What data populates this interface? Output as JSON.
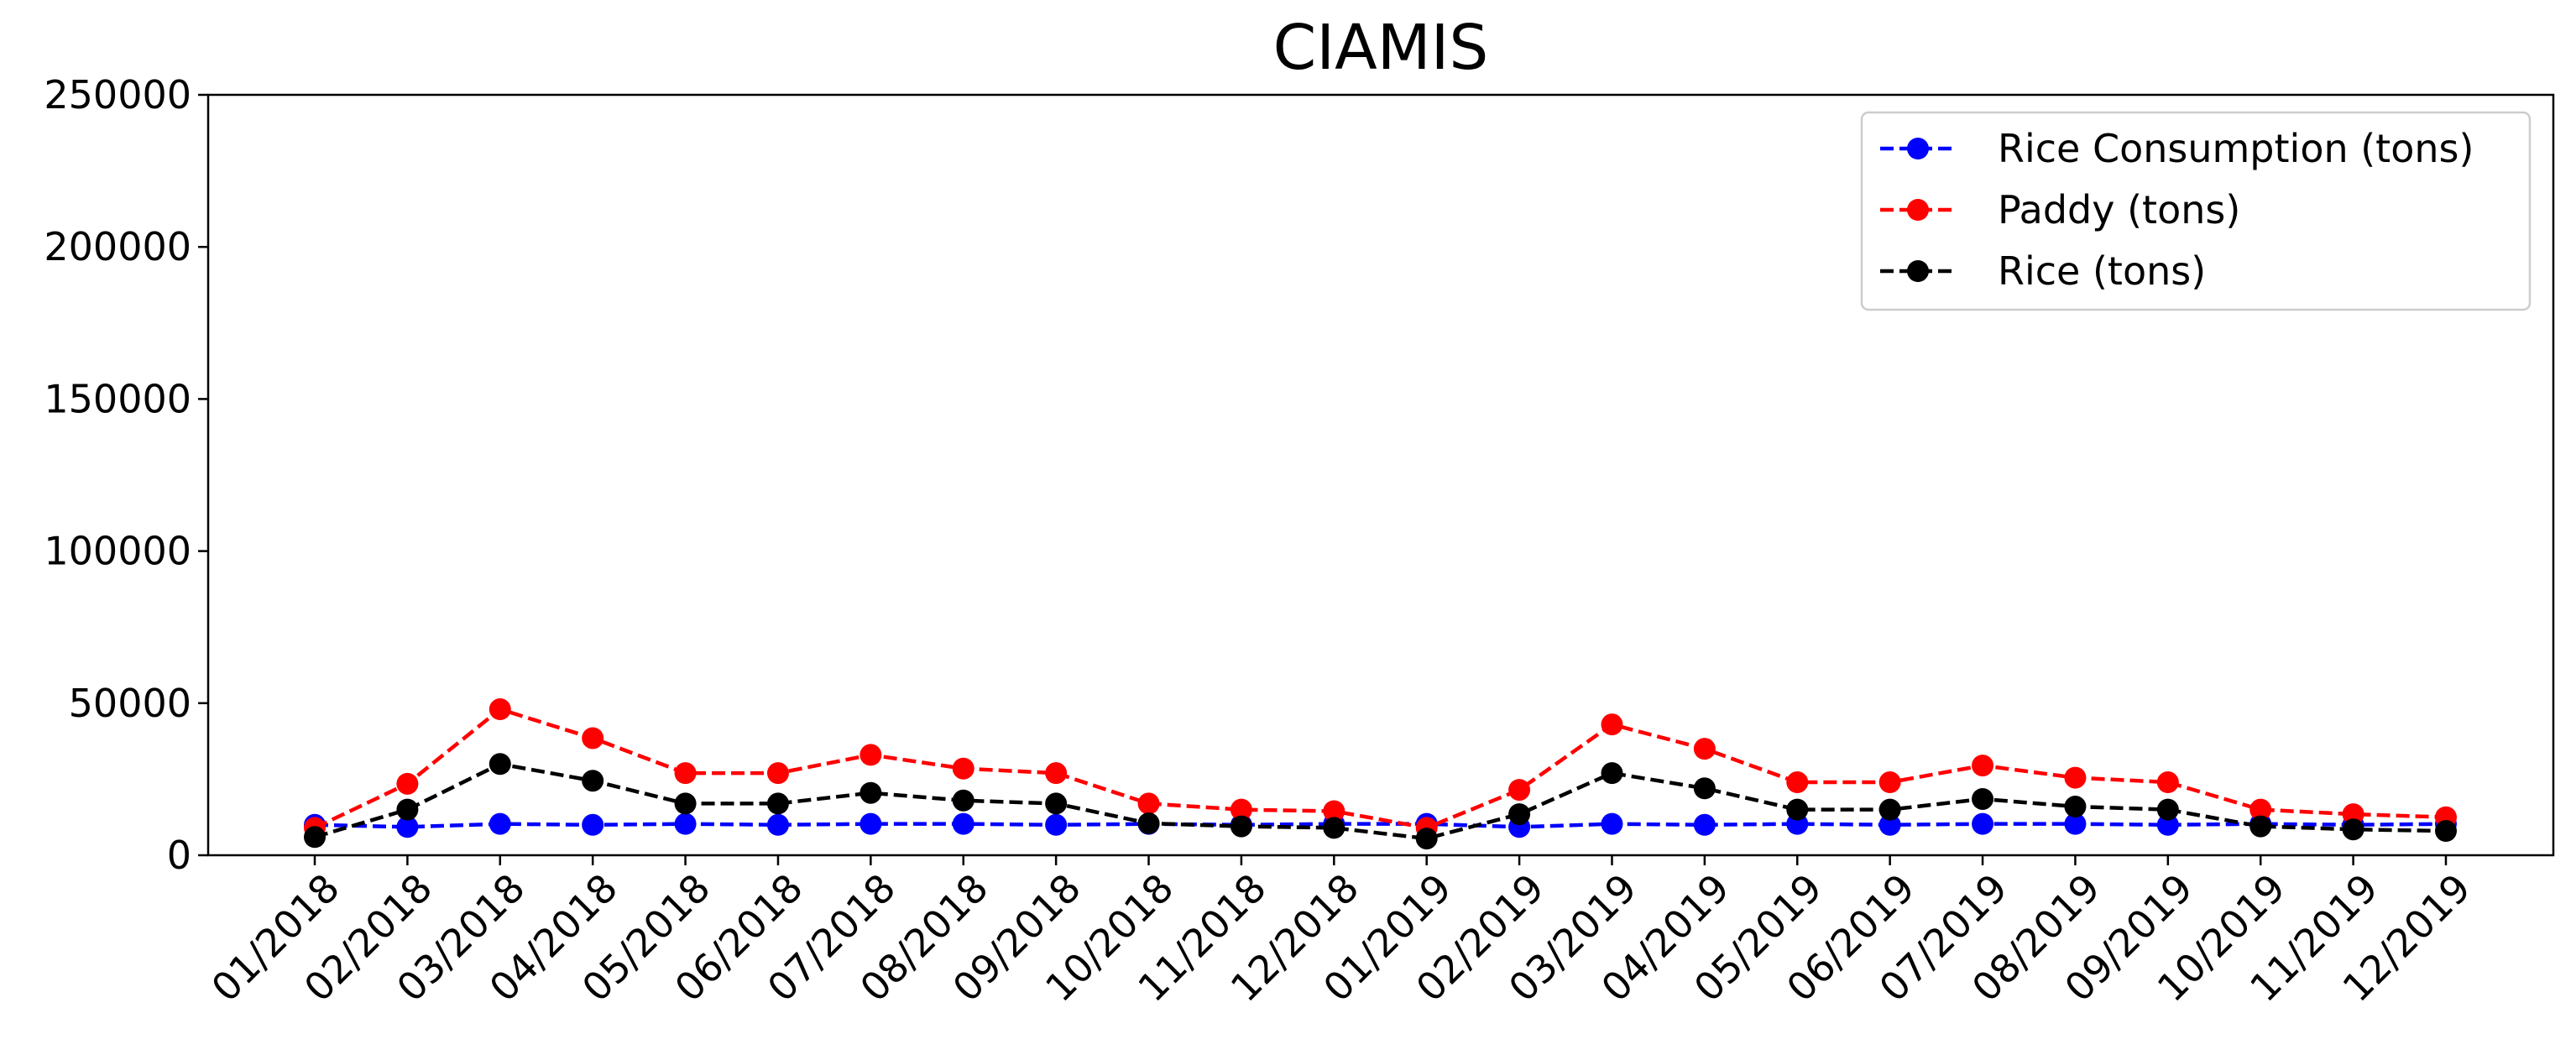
{
  "chart_data": {
    "type": "line",
    "title": "CIAMIS",
    "xlabel": "",
    "ylabel": "",
    "ylim": [
      0,
      250000
    ],
    "yticks": [
      "0",
      "50000",
      "100000",
      "150000",
      "200000",
      "250000"
    ],
    "categories": [
      "01/2018",
      "02/2018",
      "03/2018",
      "04/2018",
      "05/2018",
      "06/2018",
      "07/2018",
      "08/2018",
      "09/2018",
      "10/2018",
      "11/2018",
      "12/2018",
      "01/2019",
      "02/2019",
      "03/2019",
      "04/2019",
      "05/2019",
      "06/2019",
      "07/2019",
      "08/2019",
      "09/2019",
      "10/2019",
      "11/2019",
      "12/2019"
    ],
    "grid": false,
    "legend_position": "top-right",
    "series": [
      {
        "name": "Rice Consumption (tons)",
        "color": "#0000ff",
        "values": [
          10000,
          9300,
          10300,
          10000,
          10300,
          10000,
          10300,
          10300,
          10000,
          10300,
          10000,
          10300,
          10300,
          9300,
          10300,
          10000,
          10300,
          10000,
          10300,
          10300,
          10000,
          10300,
          10000,
          10300
        ]
      },
      {
        "name": "Paddy (tons)",
        "color": "#ff0000",
        "values": [
          9000,
          23500,
          48000,
          38500,
          27000,
          27000,
          33000,
          28500,
          27000,
          17000,
          15000,
          14500,
          9000,
          21500,
          43000,
          35000,
          24000,
          24000,
          29500,
          25500,
          24000,
          15000,
          13500,
          12500
        ]
      },
      {
        "name": "Rice (tons)",
        "color": "#000000",
        "values": [
          6000,
          15000,
          30000,
          24500,
          17000,
          17000,
          20500,
          18000,
          17000,
          10500,
          9500,
          9000,
          5500,
          13500,
          27000,
          22000,
          15000,
          15000,
          18500,
          16000,
          15000,
          9500,
          8500,
          8000
        ]
      }
    ]
  }
}
